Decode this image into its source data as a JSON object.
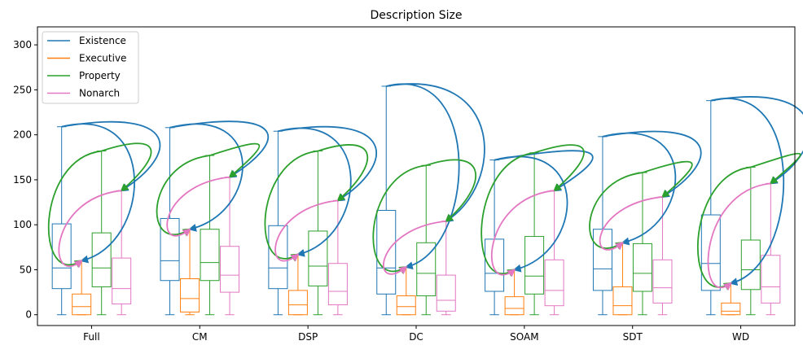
{
  "chart_data": {
    "type": "box",
    "title": "Description Size",
    "xlabel": "",
    "ylabel": "",
    "ylim": [
      -12,
      320
    ],
    "yticks": [
      0,
      50,
      100,
      150,
      200,
      250,
      300
    ],
    "categories": [
      "Full",
      "CM",
      "DSP",
      "DC",
      "SOAM",
      "SDT",
      "WD"
    ],
    "legend_position": "top-left",
    "grid": false,
    "series": [
      {
        "name": "Existence",
        "color": "#1f77b4",
        "boxes": [
          {
            "whislo": 0,
            "q1": 29,
            "med": 52,
            "q3": 101,
            "whishi": 209
          },
          {
            "whislo": 0,
            "q1": 38,
            "med": 60,
            "q3": 107,
            "whishi": 208
          },
          {
            "whislo": 0,
            "q1": 29,
            "med": 52,
            "q3": 99,
            "whishi": 204
          },
          {
            "whislo": 0,
            "q1": 23,
            "med": 52,
            "q3": 116,
            "whishi": 254
          },
          {
            "whislo": 0,
            "q1": 26,
            "med": 46,
            "q3": 84,
            "whishi": 172
          },
          {
            "whislo": 0,
            "q1": 27,
            "med": 51,
            "q3": 95,
            "whishi": 198
          },
          {
            "whislo": 0,
            "q1": 27,
            "med": 57,
            "q3": 111,
            "whishi": 238
          }
        ]
      },
      {
        "name": "Executive",
        "color": "#ff7f0e",
        "boxes": [
          {
            "whislo": 0,
            "q1": 0,
            "med": 9,
            "q3": 23,
            "whishi": 60
          },
          {
            "whislo": 0,
            "q1": 3,
            "med": 18,
            "q3": 40,
            "whishi": 95
          },
          {
            "whislo": 0,
            "q1": 0,
            "med": 11,
            "q3": 27,
            "whishi": 67
          },
          {
            "whislo": 0,
            "q1": 0,
            "med": 9,
            "q3": 21,
            "whishi": 53
          },
          {
            "whislo": 0,
            "q1": 0,
            "med": 7,
            "q3": 20,
            "whishi": 50
          },
          {
            "whislo": 0,
            "q1": 0,
            "med": 10,
            "q3": 31,
            "whishi": 80
          },
          {
            "whislo": 0,
            "q1": 0,
            "med": 4,
            "q3": 13,
            "whishi": 35
          }
        ]
      },
      {
        "name": "Property",
        "color": "#2ca02c",
        "boxes": [
          {
            "whislo": 0,
            "q1": 31,
            "med": 52,
            "q3": 91,
            "whishi": 182
          },
          {
            "whislo": 0,
            "q1": 38,
            "med": 58,
            "q3": 95,
            "whishi": 177
          },
          {
            "whislo": 0,
            "q1": 32,
            "med": 54,
            "q3": 93,
            "whishi": 182
          },
          {
            "whislo": 0,
            "q1": 21,
            "med": 46,
            "q3": 80,
            "whishi": 166
          },
          {
            "whislo": 0,
            "q1": 23,
            "med": 43,
            "q3": 87,
            "whishi": 180
          },
          {
            "whislo": 0,
            "q1": 26,
            "med": 46,
            "q3": 79,
            "whishi": 158
          },
          {
            "whislo": 0,
            "q1": 28,
            "med": 50,
            "q3": 83,
            "whishi": 164
          }
        ]
      },
      {
        "name": "Nonarch",
        "color": "#e377c2",
        "boxes": [
          {
            "whislo": 0,
            "q1": 12,
            "med": 29,
            "q3": 63,
            "whishi": 138
          },
          {
            "whislo": 0,
            "q1": 25,
            "med": 44,
            "q3": 76,
            "whishi": 153
          },
          {
            "whislo": 0,
            "q1": 11,
            "med": 26,
            "q3": 57,
            "whishi": 127
          },
          {
            "whislo": 0,
            "q1": 4,
            "med": 16,
            "q3": 44,
            "whishi": 104
          },
          {
            "whislo": 0,
            "q1": 10,
            "med": 27,
            "q3": 61,
            "whishi": 138
          },
          {
            "whislo": 0,
            "q1": 13,
            "med": 30,
            "q3": 61,
            "whishi": 131
          },
          {
            "whislo": 0,
            "q1": 13,
            "med": 31,
            "q3": 66,
            "whishi": 146
          }
        ]
      }
    ],
    "arrows": [
      {
        "from": "Existence",
        "to": "Executive"
      },
      {
        "from": "Existence",
        "to": "Nonarch"
      },
      {
        "from": "Property",
        "to": "Executive"
      },
      {
        "from": "Property",
        "to": "Nonarch"
      },
      {
        "from": "Nonarch",
        "to": "Executive"
      }
    ]
  }
}
